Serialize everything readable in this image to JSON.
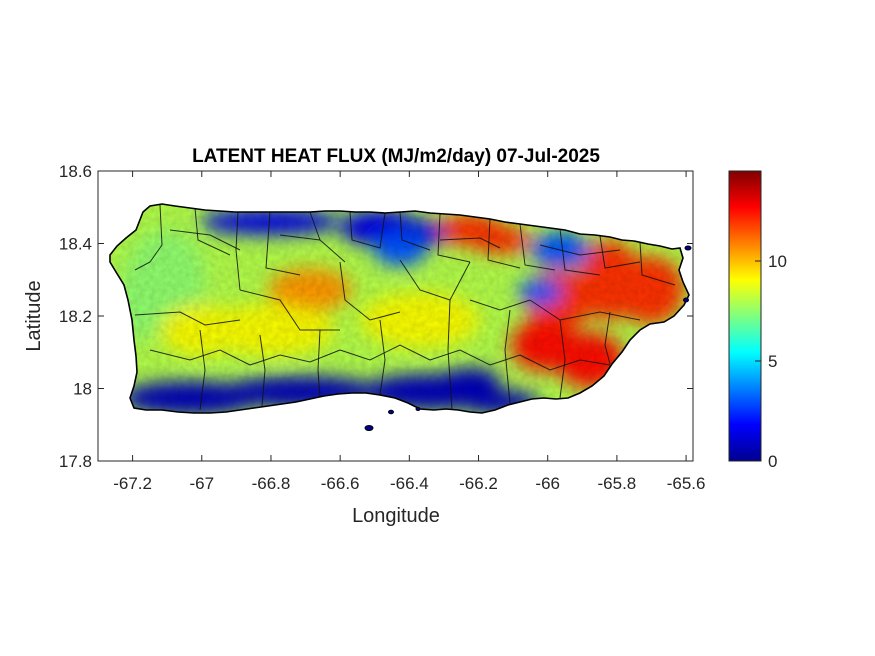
{
  "chart_data": {
    "type": "heatmap",
    "title": "LATENT HEAT FLUX (MJ/m2/day) 07-Jul-2025",
    "xlabel": "Longitude",
    "ylabel": "Latitude",
    "xlim": [
      -67.3,
      -65.58
    ],
    "ylim": [
      17.8,
      18.6
    ],
    "x_ticks": [
      -67.2,
      -67,
      -66.8,
      -66.6,
      -66.4,
      -66.2,
      -66,
      -65.8,
      -65.6
    ],
    "x_tick_labels": [
      "-67.2",
      "-67",
      "-66.8",
      "-66.6",
      "-66.4",
      "-66.2",
      "-66",
      "-65.8",
      "-65.6"
    ],
    "y_ticks": [
      17.8,
      18,
      18.2,
      18.4,
      18.6
    ],
    "y_tick_labels": [
      "17.8",
      "18",
      "18.2",
      "18.4",
      "18.6"
    ],
    "colorbar": {
      "colormap": "jet",
      "range": [
        0,
        14.5
      ],
      "ticks": [
        0,
        5,
        10
      ],
      "tick_labels": [
        "0",
        "5",
        "10"
      ]
    },
    "regions": [
      {
        "area": "northeast coast",
        "value": 12
      },
      {
        "area": "east",
        "value": 12
      },
      {
        "area": "southeast",
        "value": 12.5
      },
      {
        "area": "central north",
        "value": 10.5
      },
      {
        "area": "north coast west-central",
        "value": 1.5
      },
      {
        "area": "north interior",
        "value": 3
      },
      {
        "area": "west",
        "value": 7.5
      },
      {
        "area": "central",
        "value": 9
      },
      {
        "area": "south coast",
        "value": 0.8
      }
    ]
  }
}
